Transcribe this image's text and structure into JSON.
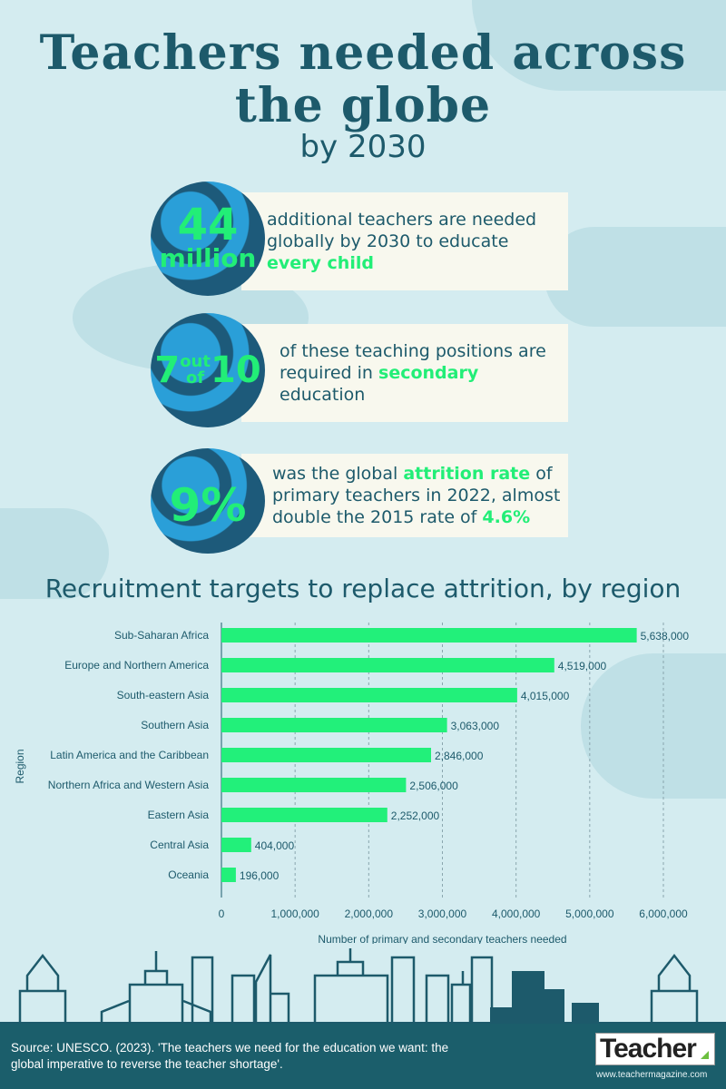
{
  "title": "Teachers needed across the globe",
  "subtitle": "by 2030",
  "stats": [
    {
      "big": "44",
      "big2": "million",
      "text_a": "additional teachers are needed globally by 2030 to educate ",
      "hl1": "every child",
      "text_b": "",
      "hl2": "",
      "text_c": ""
    },
    {
      "big": "7",
      "out": "out",
      "of": "of",
      "big2": "10",
      "text_a": "of these teaching positions are required in ",
      "hl1": "secondary",
      "text_b": " education",
      "hl2": "",
      "text_c": ""
    },
    {
      "big": "9%",
      "text_a": "was the global ",
      "hl1": "attrition rate",
      "text_b": " of primary teachers in 2022, almost double the 2015 rate of ",
      "hl2": "4.6%",
      "text_c": ""
    }
  ],
  "colors": {
    "background": "#d4ecf0",
    "primary": "#1d5a6b",
    "accent": "#22ee77",
    "bar": "#22f07a",
    "footer": "#1b5e6b"
  },
  "chart_data": {
    "type": "bar",
    "orientation": "horizontal",
    "title": "Recruitment targets to replace attrition, by region",
    "xlabel": "Number of primary and secondary teachers needed",
    "ylabel": "Region",
    "categories": [
      "Sub-Saharan Africa",
      "Europe and Northern America",
      "South-eastern Asia",
      "Southern Asia",
      "Latin America and the Caribbean",
      "Northern Africa and Western Asia",
      "Eastern Asia",
      "Central Asia",
      "Oceania"
    ],
    "values": [
      5638000,
      4519000,
      4015000,
      3063000,
      2846000,
      2506000,
      2252000,
      404000,
      196000
    ],
    "value_labels": [
      "5,638,000",
      "4,519,000",
      "4,015,000",
      "3,063,000",
      "2,846,000",
      "2,506,000",
      "2,252,000",
      "404,000",
      "196,000"
    ],
    "xlim": [
      0,
      6000000
    ],
    "xticks": [
      0,
      1000000,
      2000000,
      3000000,
      4000000,
      5000000,
      6000000
    ],
    "xtick_labels": [
      "0",
      "1,000,000",
      "2,000,000",
      "3,000,000",
      "4,000,000",
      "5,000,000",
      "6,000,000"
    ],
    "grid": "vertical dashed"
  },
  "footer": {
    "source": "Source: UNESCO. (2023). 'The teachers we need for the education we want: the global imperative to reverse the teacher shortage'.",
    "logo": "Teacher",
    "url": "www.teachermagazine.com"
  }
}
